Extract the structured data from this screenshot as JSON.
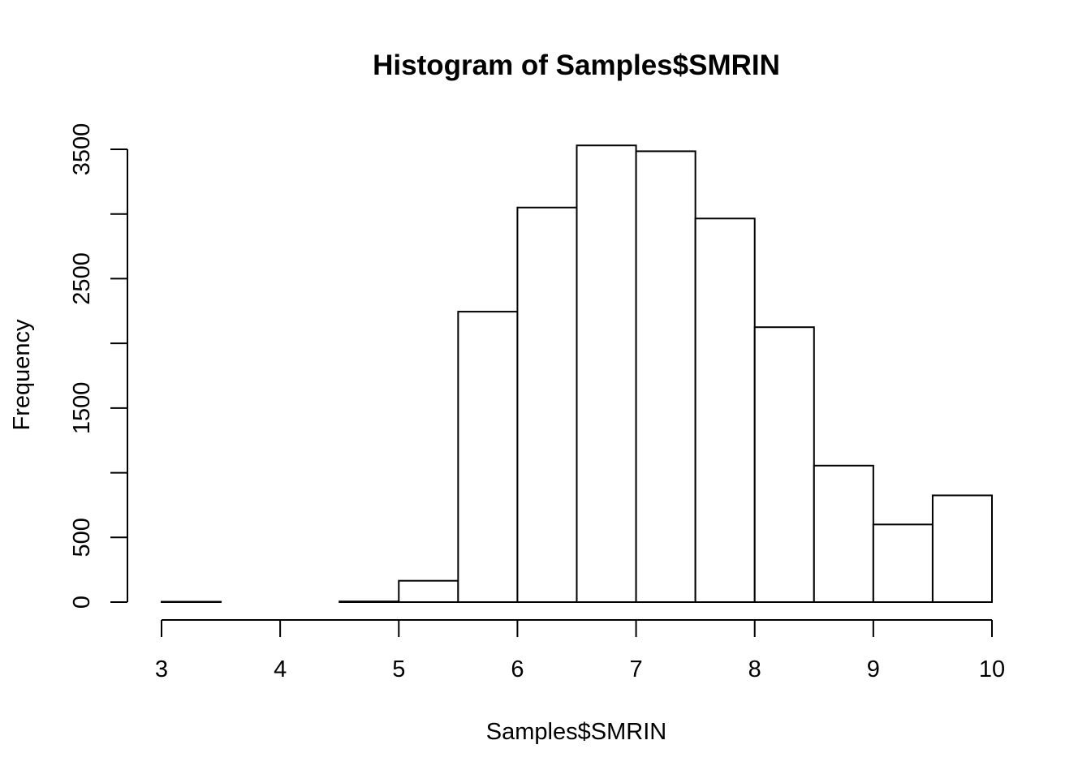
{
  "chart_data": {
    "type": "bar",
    "title": "Histogram of Samples$SMRIN",
    "xlabel": "Samples$SMRIN",
    "ylabel": "Frequency",
    "xlim": [
      3,
      10
    ],
    "ylim": [
      0,
      3500
    ],
    "x_ticks": [
      3,
      4,
      5,
      6,
      7,
      8,
      9,
      10
    ],
    "y_ticks": [
      0,
      500,
      1500,
      2500,
      3500
    ],
    "y_minor_ticks": [
      0,
      500,
      1000,
      1500,
      2000,
      2500,
      3000,
      3500
    ],
    "grid": false,
    "bin_edges": [
      3.0,
      3.5,
      4.0,
      4.5,
      5.0,
      5.5,
      6.0,
      6.5,
      7.0,
      7.5,
      8.0,
      8.5,
      9.0,
      9.5,
      10.0
    ],
    "values": [
      3,
      0,
      0,
      5,
      165,
      2245,
      3050,
      3530,
      3485,
      2965,
      2125,
      1055,
      600,
      825
    ]
  }
}
